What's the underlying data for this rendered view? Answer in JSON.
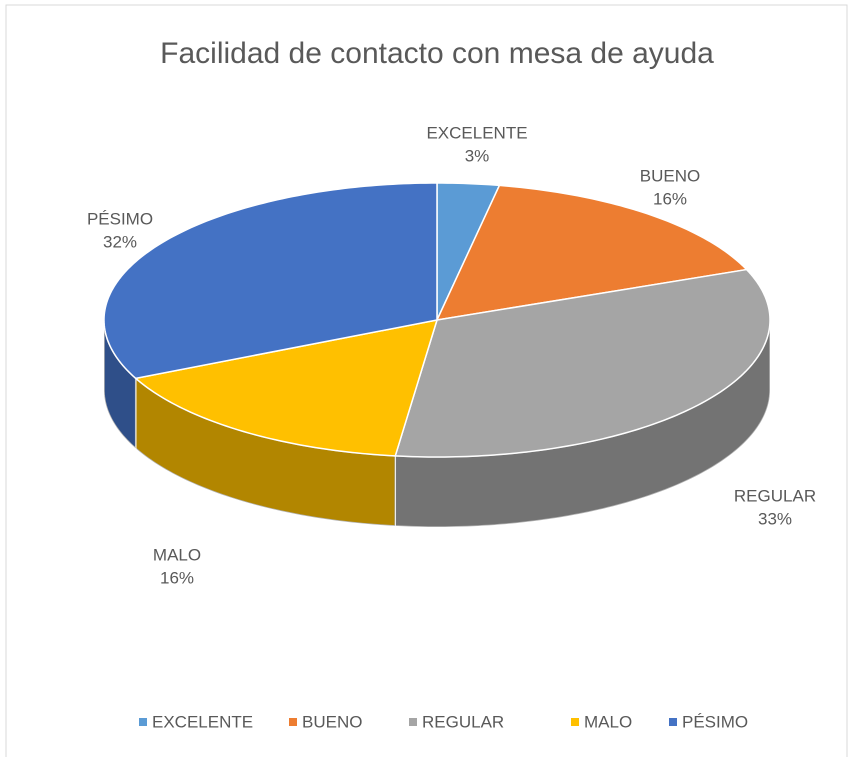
{
  "chart_data": {
    "type": "pie",
    "title": "Facilidad de contacto con mesa de ayuda",
    "categories": [
      "EXCELENTE",
      "BUENO",
      "REGULAR",
      "MALO",
      "PÉSIMO"
    ],
    "values": [
      3,
      16,
      33,
      16,
      32
    ],
    "value_labels": [
      "3%",
      "16%",
      "33%",
      "16%",
      "32%"
    ],
    "colors": [
      "#5b9bd5",
      "#ed7d31",
      "#a5a5a5",
      "#ffc000",
      "#4472c4"
    ],
    "legend": "bottom"
  }
}
